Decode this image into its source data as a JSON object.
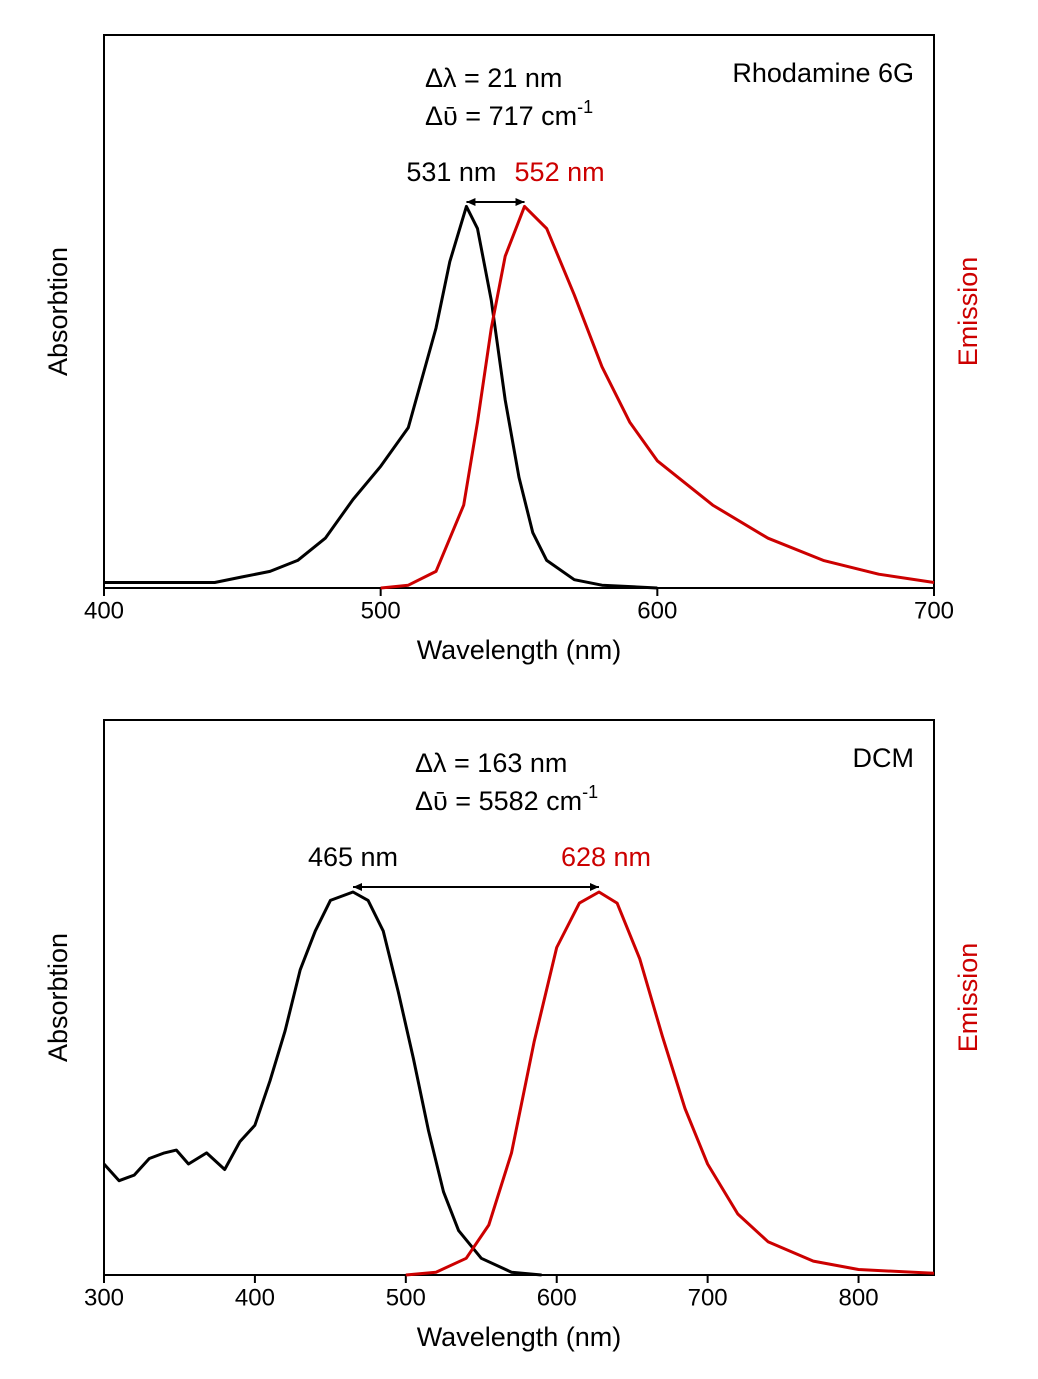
{
  "chart_data": [
    {
      "type": "line",
      "title": "Rhodamine 6G",
      "xlabel": "Wavelength (nm)",
      "ylabel": "Absorbtion",
      "y2label": "Emission",
      "xlim": [
        400,
        700
      ],
      "xticks": [
        400,
        500,
        600,
        700
      ],
      "ylim": [
        0,
        1
      ],
      "annotations": [
        {
          "text": "Δλ = 21 nm"
        },
        {
          "text": "Δῡ = 717 cm",
          "sup": "-1"
        }
      ],
      "peak_labels": [
        {
          "text": "531 nm",
          "x": 531,
          "color": "#000000"
        },
        {
          "text": "552 nm",
          "x": 552,
          "color": "#cc0000"
        }
      ],
      "series": [
        {
          "color": "#000000",
          "x": [
            400,
            420,
            440,
            450,
            460,
            470,
            480,
            490,
            500,
            510,
            520,
            525,
            531,
            535,
            540,
            545,
            550,
            555,
            560,
            570,
            580,
            600
          ],
          "values": [
            0.01,
            0.01,
            0.01,
            0.02,
            0.03,
            0.05,
            0.09,
            0.16,
            0.22,
            0.29,
            0.47,
            0.59,
            0.69,
            0.65,
            0.52,
            0.34,
            0.2,
            0.1,
            0.05,
            0.015,
            0.005,
            0
          ]
        },
        {
          "color": "#cc0000",
          "axis": "y2",
          "x": [
            500,
            510,
            520,
            530,
            535,
            540,
            545,
            552,
            560,
            570,
            580,
            590,
            600,
            610,
            620,
            640,
            660,
            680,
            700
          ],
          "values": [
            0,
            0.005,
            0.03,
            0.15,
            0.3,
            0.47,
            0.6,
            0.69,
            0.65,
            0.53,
            0.4,
            0.3,
            0.23,
            0.19,
            0.15,
            0.09,
            0.05,
            0.025,
            0.01
          ]
        }
      ]
    },
    {
      "type": "line",
      "title": "DCM",
      "xlabel": "Wavelength (nm)",
      "ylabel": "Absorbtion",
      "y2label": "Emission",
      "xlim": [
        300,
        850
      ],
      "xticks": [
        300,
        400,
        500,
        600,
        700,
        800
      ],
      "ylim": [
        0,
        1
      ],
      "annotations": [
        {
          "text": "Δλ = 163 nm"
        },
        {
          "text": "Δῡ = 5582 cm",
          "sup": "-1"
        }
      ],
      "peak_labels": [
        {
          "text": "465 nm",
          "x": 465,
          "color": "#000000"
        },
        {
          "text": "628 nm",
          "x": 628,
          "color": "#cc0000"
        }
      ],
      "series": [
        {
          "color": "#000000",
          "x": [
            300,
            310,
            320,
            330,
            340,
            348,
            356,
            368,
            380,
            390,
            400,
            410,
            420,
            430,
            440,
            450,
            465,
            475,
            485,
            495,
            505,
            515,
            525,
            535,
            550,
            570,
            590
          ],
          "values": [
            0.2,
            0.17,
            0.18,
            0.21,
            0.22,
            0.225,
            0.2,
            0.22,
            0.19,
            0.24,
            0.27,
            0.35,
            0.44,
            0.55,
            0.62,
            0.675,
            0.69,
            0.675,
            0.62,
            0.51,
            0.39,
            0.26,
            0.15,
            0.08,
            0.03,
            0.005,
            0
          ]
        },
        {
          "color": "#cc0000",
          "axis": "y2",
          "x": [
            500,
            520,
            540,
            555,
            570,
            585,
            600,
            615,
            628,
            640,
            655,
            670,
            685,
            700,
            720,
            740,
            770,
            800,
            850
          ],
          "values": [
            0,
            0.005,
            0.03,
            0.09,
            0.22,
            0.42,
            0.59,
            0.67,
            0.69,
            0.67,
            0.57,
            0.43,
            0.3,
            0.2,
            0.11,
            0.06,
            0.025,
            0.01,
            0.003
          ]
        }
      ]
    }
  ]
}
